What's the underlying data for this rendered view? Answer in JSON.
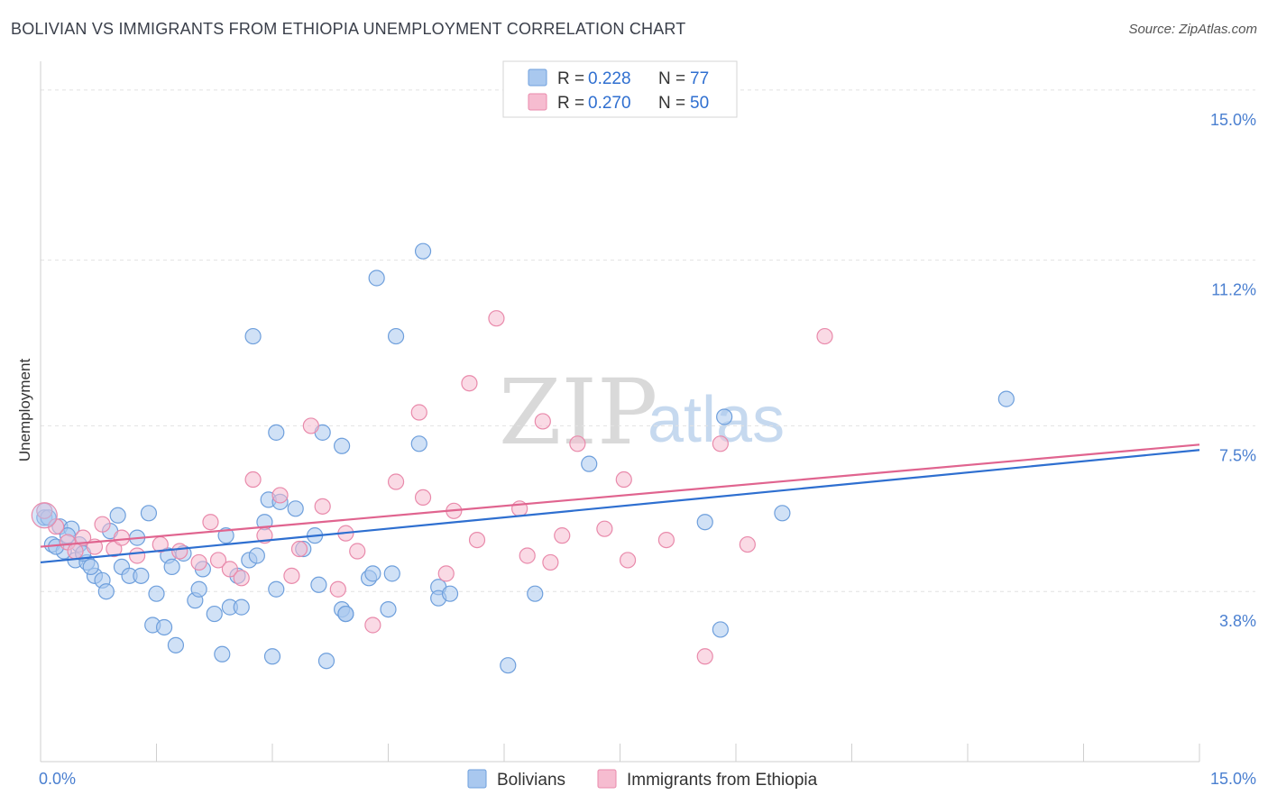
{
  "header": {
    "title": "BOLIVIAN VS IMMIGRANTS FROM ETHIOPIA UNEMPLOYMENT CORRELATION CHART",
    "source": "Source: ZipAtlas.com"
  },
  "watermark": {
    "zip": "ZIP",
    "atlas": "atlas"
  },
  "legend": {
    "rows": [
      {
        "r_label": "R =",
        "r_value": "0.228",
        "n_label": "N =",
        "n_value": "77"
      },
      {
        "r_label": "R =",
        "r_value": "0.270",
        "n_label": "N =",
        "n_value": "50"
      }
    ]
  },
  "bottom_legend": {
    "series1": "Bolivians",
    "series2": "Immigrants from Ethiopia"
  },
  "colors": {
    "blue_fill": "#a9c8ef",
    "blue_stroke": "#6e9fdc",
    "blue_line": "#2e6fd0",
    "pink_fill": "#f6bcd0",
    "pink_stroke": "#e98aab",
    "pink_line": "#e0648f",
    "tick_text": "#4a7fd0"
  },
  "chart_data": {
    "type": "scatter",
    "title": "BOLIVIAN VS IMMIGRANTS FROM ETHIOPIA UNEMPLOYMENT CORRELATION CHART",
    "xlabel": "",
    "ylabel": "Unemployment",
    "xlim": [
      0,
      15
    ],
    "ylim": [
      0,
      15.5
    ],
    "x_tick_labels": [
      "0.0%",
      "15.0%"
    ],
    "y_ticks": [
      3.8,
      7.5,
      11.2,
      15.0
    ],
    "y_tick_labels": [
      "3.8%",
      "7.5%",
      "11.2%",
      "15.0%"
    ],
    "grid": "horizontal dashed",
    "legend_position": "top-center",
    "series": [
      {
        "name": "Bolivians",
        "R": 0.228,
        "N": 77,
        "trend": {
          "x": [
            0,
            15
          ],
          "y": [
            4.45,
            6.96
          ]
        },
        "points": [
          [
            0.05,
            5.45
          ],
          [
            0.15,
            4.85
          ],
          [
            0.25,
            5.25
          ],
          [
            0.3,
            4.7
          ],
          [
            0.4,
            5.2
          ],
          [
            0.45,
            4.5
          ],
          [
            0.5,
            4.85
          ],
          [
            0.6,
            4.45
          ],
          [
            0.7,
            4.15
          ],
          [
            0.8,
            4.05
          ],
          [
            0.85,
            3.8
          ],
          [
            0.9,
            5.15
          ],
          [
            1.0,
            5.5
          ],
          [
            1.05,
            4.35
          ],
          [
            1.15,
            4.15
          ],
          [
            1.3,
            4.15
          ],
          [
            1.4,
            5.55
          ],
          [
            1.45,
            3.05
          ],
          [
            1.5,
            3.75
          ],
          [
            1.6,
            3.0
          ],
          [
            1.65,
            4.6
          ],
          [
            1.7,
            4.35
          ],
          [
            1.75,
            2.6
          ],
          [
            1.85,
            4.65
          ],
          [
            2.0,
            3.6
          ],
          [
            2.05,
            3.85
          ],
          [
            2.1,
            4.3
          ],
          [
            2.25,
            3.3
          ],
          [
            2.35,
            2.4
          ],
          [
            2.4,
            5.05
          ],
          [
            2.45,
            3.45
          ],
          [
            2.55,
            4.15
          ],
          [
            2.6,
            3.45
          ],
          [
            2.7,
            4.5
          ],
          [
            2.75,
            9.5
          ],
          [
            2.8,
            4.6
          ],
          [
            2.9,
            5.35
          ],
          [
            2.95,
            5.85
          ],
          [
            3.0,
            2.35
          ],
          [
            3.05,
            3.85
          ],
          [
            3.05,
            7.35
          ],
          [
            3.1,
            5.8
          ],
          [
            3.3,
            5.65
          ],
          [
            3.4,
            4.75
          ],
          [
            3.55,
            5.05
          ],
          [
            3.6,
            3.95
          ],
          [
            3.65,
            7.35
          ],
          [
            3.7,
            2.25
          ],
          [
            3.9,
            3.4
          ],
          [
            3.9,
            7.05
          ],
          [
            3.95,
            3.3
          ],
          [
            3.95,
            3.3
          ],
          [
            4.25,
            4.1
          ],
          [
            4.3,
            4.2
          ],
          [
            4.35,
            10.8
          ],
          [
            4.5,
            3.4
          ],
          [
            4.55,
            4.2
          ],
          [
            4.6,
            9.5
          ],
          [
            4.9,
            7.1
          ],
          [
            4.95,
            11.4
          ],
          [
            5.15,
            3.9
          ],
          [
            5.15,
            3.65
          ],
          [
            5.3,
            3.75
          ],
          [
            6.05,
            2.15
          ],
          [
            6.4,
            3.75
          ],
          [
            7.1,
            6.65
          ],
          [
            8.6,
            5.35
          ],
          [
            8.8,
            2.95
          ],
          [
            8.85,
            7.7
          ],
          [
            9.6,
            5.55
          ],
          [
            12.5,
            8.1
          ],
          [
            0.1,
            5.45
          ],
          [
            0.2,
            4.8
          ],
          [
            0.55,
            4.65
          ],
          [
            1.25,
            5.0
          ],
          [
            0.65,
            4.35
          ],
          [
            0.35,
            5.05
          ]
        ]
      },
      {
        "name": "Immigrants from Ethiopia",
        "R": 0.27,
        "N": 50,
        "trend": {
          "x": [
            0,
            15
          ],
          "y": [
            4.8,
            7.08
          ]
        },
        "points": [
          [
            0.05,
            5.6
          ],
          [
            0.2,
            5.25
          ],
          [
            0.35,
            4.9
          ],
          [
            0.45,
            4.7
          ],
          [
            0.55,
            5.0
          ],
          [
            0.7,
            4.8
          ],
          [
            0.8,
            5.3
          ],
          [
            0.95,
            4.75
          ],
          [
            1.05,
            5.0
          ],
          [
            1.25,
            4.6
          ],
          [
            1.55,
            4.85
          ],
          [
            1.8,
            4.7
          ],
          [
            2.05,
            4.45
          ],
          [
            2.2,
            5.35
          ],
          [
            2.3,
            4.5
          ],
          [
            2.45,
            4.3
          ],
          [
            2.6,
            4.1
          ],
          [
            2.75,
            6.3
          ],
          [
            2.9,
            5.05
          ],
          [
            3.1,
            5.95
          ],
          [
            3.25,
            4.15
          ],
          [
            3.35,
            4.75
          ],
          [
            3.5,
            7.5
          ],
          [
            3.65,
            5.7
          ],
          [
            3.85,
            3.85
          ],
          [
            3.95,
            5.1
          ],
          [
            4.1,
            4.7
          ],
          [
            4.3,
            3.05
          ],
          [
            4.6,
            6.25
          ],
          [
            4.9,
            7.8
          ],
          [
            4.95,
            5.9
          ],
          [
            5.25,
            4.2
          ],
          [
            5.35,
            5.6
          ],
          [
            5.55,
            8.45
          ],
          [
            5.65,
            4.95
          ],
          [
            5.9,
            9.9
          ],
          [
            6.2,
            5.65
          ],
          [
            6.3,
            4.6
          ],
          [
            6.5,
            7.6
          ],
          [
            6.6,
            4.45
          ],
          [
            6.75,
            5.05
          ],
          [
            6.95,
            7.1
          ],
          [
            7.3,
            5.2
          ],
          [
            7.55,
            6.3
          ],
          [
            7.6,
            4.5
          ],
          [
            8.1,
            4.95
          ],
          [
            8.6,
            2.35
          ],
          [
            8.8,
            7.1
          ],
          [
            9.15,
            4.85
          ],
          [
            10.15,
            9.5
          ]
        ]
      }
    ]
  }
}
